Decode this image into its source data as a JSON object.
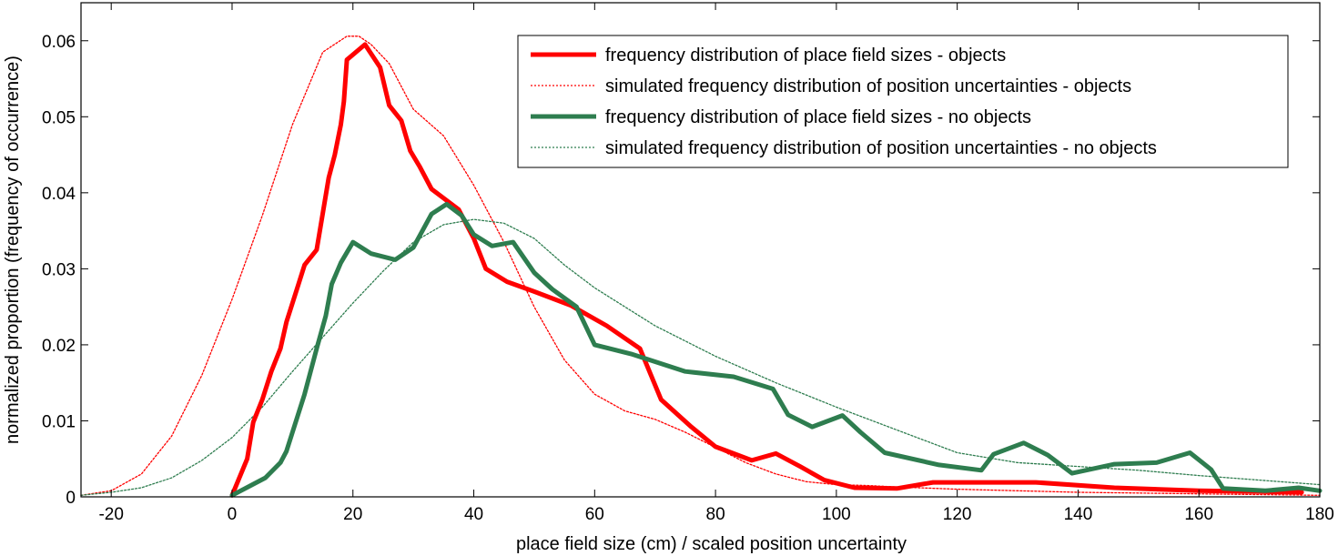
{
  "chart_data": {
    "type": "line",
    "title": "",
    "xlabel": "place field size (cm) / scaled position uncertainty",
    "ylabel": "normalized proportion (frequency of occurrence)",
    "xlim": [
      -25,
      180
    ],
    "ylim": [
      0,
      0.065
    ],
    "x_ticks": [
      -20,
      0,
      20,
      40,
      60,
      80,
      100,
      120,
      140,
      160,
      180
    ],
    "y_ticks": [
      0,
      0.01,
      0.02,
      0.03,
      0.04,
      0.05,
      0.06
    ],
    "x_tick_labels": [
      "-20",
      "0",
      "20",
      "40",
      "60",
      "80",
      "100",
      "120",
      "140",
      "160",
      "180"
    ],
    "y_tick_labels": [
      "0",
      "0.01",
      "0.02",
      "0.03",
      "0.04",
      "0.05",
      "0.06"
    ],
    "grid": false,
    "legend_position": "top-right",
    "series": [
      {
        "name": "frequency distribution of place field sizes - objects",
        "color": "#ff0000",
        "style": "solid-thick",
        "x": [
          0,
          2.5,
          3.5,
          5,
          6.5,
          8,
          9,
          11,
          12,
          14,
          16,
          17,
          18,
          18.5,
          19,
          22,
          24.5,
          26,
          28,
          29.5,
          31,
          33,
          37.5,
          40,
          42,
          45.5,
          50,
          56,
          62,
          67.5,
          71,
          76,
          80,
          86,
          90,
          94,
          98,
          103,
          110,
          116,
          124,
          133,
          146,
          160,
          177
        ],
        "y": [
          0.0002,
          0.005,
          0.0098,
          0.0128,
          0.0165,
          0.0195,
          0.023,
          0.028,
          0.0305,
          0.0325,
          0.042,
          0.045,
          0.049,
          0.052,
          0.0575,
          0.0595,
          0.0565,
          0.0515,
          0.0495,
          0.0455,
          0.0435,
          0.0405,
          0.0378,
          0.034,
          0.03,
          0.0283,
          0.027,
          0.0252,
          0.0225,
          0.0195,
          0.0128,
          0.0092,
          0.0066,
          0.0048,
          0.0057,
          0.004,
          0.0022,
          0.0012,
          0.0011,
          0.0019,
          0.0019,
          0.0019,
          0.0012,
          0.0008,
          0.0006
        ]
      },
      {
        "name": "simulated frequency distribution of position uncertainties - objects",
        "color": "#ff0000",
        "style": "dotted-thin",
        "x": [
          -25,
          -20,
          -15,
          -10,
          -5,
          0,
          5,
          10,
          15,
          19,
          21,
          23,
          26,
          30,
          35,
          40,
          45,
          50,
          55,
          60,
          65,
          70,
          75,
          80,
          85,
          90,
          95,
          100,
          105,
          110,
          120,
          130,
          140,
          150,
          160,
          170,
          180
        ],
        "y": [
          0.0002,
          0.0008,
          0.003,
          0.008,
          0.016,
          0.026,
          0.037,
          0.049,
          0.0585,
          0.0606,
          0.0606,
          0.0595,
          0.057,
          0.051,
          0.0475,
          0.041,
          0.0335,
          0.025,
          0.018,
          0.0135,
          0.0113,
          0.0102,
          0.0085,
          0.0065,
          0.0045,
          0.003,
          0.002,
          0.0016,
          0.0015,
          0.0013,
          0.001,
          0.0008,
          0.0006,
          0.0005,
          0.0004,
          0.0003,
          0.0002
        ]
      },
      {
        "name": "frequency distribution of place field sizes - no objects",
        "color": "#2e7d4f",
        "style": "solid-thick",
        "x": [
          0,
          5.5,
          8,
          9,
          12,
          14,
          15.5,
          16.5,
          18,
          20,
          23,
          27,
          30,
          33,
          35.5,
          38,
          40,
          43,
          46.5,
          50,
          53,
          57,
          60,
          66,
          75,
          83,
          89.5,
          92,
          96,
          101,
          104,
          108,
          117,
          124,
          126,
          131,
          135,
          139,
          146,
          153,
          158.5,
          162,
          164,
          171,
          176.5,
          180
        ],
        "y": [
          0.0002,
          0.0025,
          0.0045,
          0.006,
          0.0135,
          0.0195,
          0.0238,
          0.028,
          0.0308,
          0.0335,
          0.032,
          0.0312,
          0.0328,
          0.0372,
          0.0385,
          0.037,
          0.0345,
          0.033,
          0.0335,
          0.0295,
          0.0273,
          0.025,
          0.02,
          0.0188,
          0.0165,
          0.0158,
          0.0142,
          0.0108,
          0.0092,
          0.0107,
          0.0085,
          0.0058,
          0.0042,
          0.0035,
          0.0056,
          0.0071,
          0.0055,
          0.0031,
          0.0043,
          0.0045,
          0.0058,
          0.0036,
          0.0011,
          0.0008,
          0.0012,
          0.0008
        ]
      },
      {
        "name": "simulated frequency distribution of position uncertainties - no objects",
        "color": "#2e7d4f",
        "style": "dotted-thin",
        "x": [
          -25,
          -20,
          -15,
          -10,
          -5,
          0,
          5,
          10,
          15,
          20,
          25,
          30,
          35,
          40,
          45,
          50,
          55,
          60,
          70,
          80,
          90,
          100,
          110,
          120,
          130,
          140,
          150,
          160,
          170,
          180
        ],
        "y": [
          0.0002,
          0.0006,
          0.0012,
          0.0025,
          0.0048,
          0.0078,
          0.0118,
          0.0165,
          0.021,
          0.0255,
          0.0297,
          0.0335,
          0.0358,
          0.0365,
          0.036,
          0.034,
          0.0305,
          0.0275,
          0.0225,
          0.0185,
          0.015,
          0.0118,
          0.0088,
          0.0058,
          0.0045,
          0.004,
          0.0035,
          0.0028,
          0.0022,
          0.0016
        ]
      }
    ]
  }
}
